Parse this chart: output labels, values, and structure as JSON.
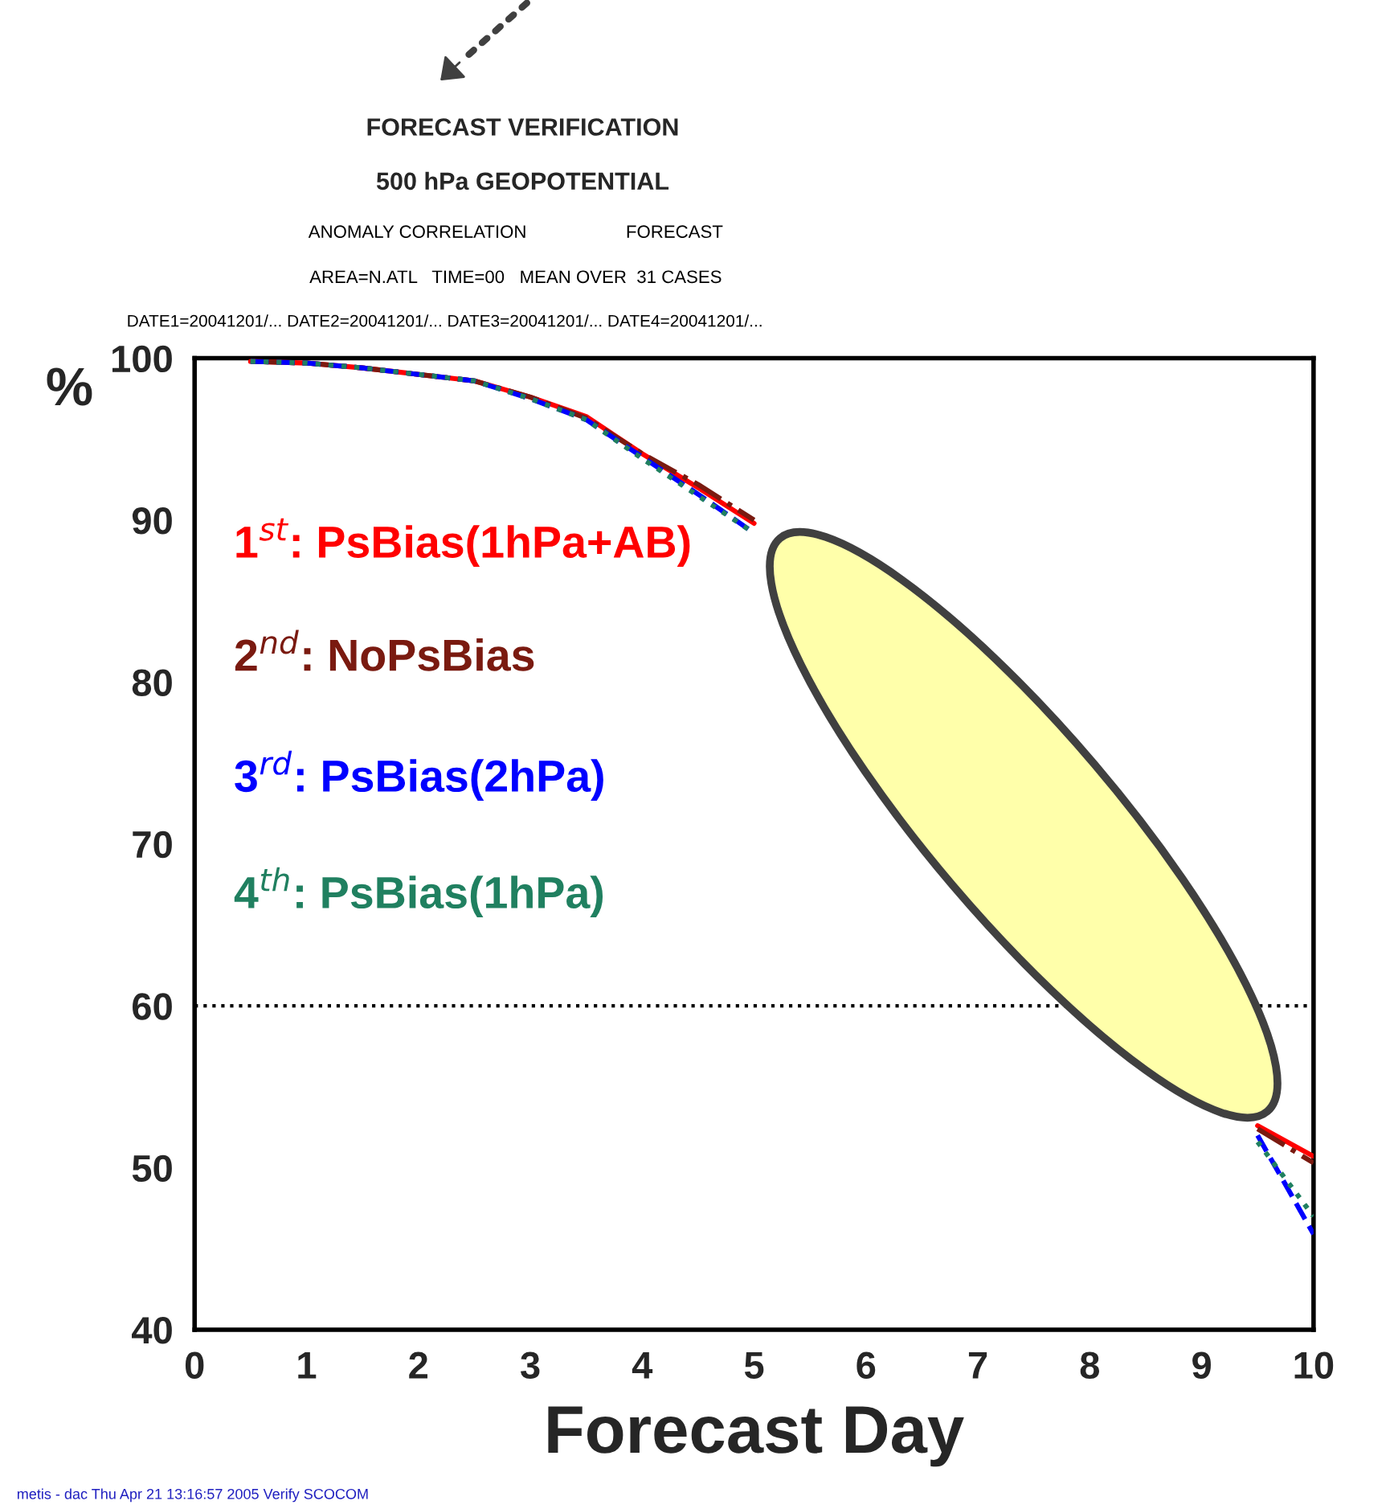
{
  "chart_data": {
    "type": "line",
    "title": "FORECAST VERIFICATION",
    "subtitle": "500 hPa GEOPOTENTIAL",
    "xlabel": "Forecast Day",
    "ylabel": "%",
    "annotations": [
      "ANOMALY CORRELATION                    FORECAST",
      "AREA=N.ATL   TIME=00   MEAN OVER  31 CASES",
      "DATE1=20041201/... DATE2=20041201/... DATE3=20041201/... DATE4=20041201/...",
      "metis - dac Thu Apr 21 13:16:57 2005 Verify SCOCOM"
    ],
    "x": [
      0.5,
      1,
      1.5,
      2,
      2.5,
      3,
      3.5,
      4,
      4.5,
      5,
      5.5,
      6,
      6.5,
      7,
      7.5,
      8,
      8.5,
      9,
      9.5,
      10
    ],
    "series": [
      {
        "name": "1$^{st}$: PsBias(1hPa+AB)",
        "color": "#ff0000",
        "line_style": "solid",
        "values": [
          99.8,
          99.7,
          99.4,
          99.0,
          98.6,
          97.6,
          96.4,
          94.1,
          92.0,
          89.8,
          null,
          null,
          null,
          null,
          null,
          null,
          null,
          null,
          52.6,
          50.7
        ]
      },
      {
        "name": "2$^{nd}$: NoPsBias",
        "color": "#7a1a10",
        "line_style": "dashdot",
        "values": [
          99.8,
          99.7,
          99.4,
          99.0,
          98.6,
          97.6,
          96.3,
          94.1,
          92.2,
          90.0,
          null,
          null,
          null,
          null,
          null,
          null,
          null,
          null,
          52.4,
          50.3
        ]
      },
      {
        "name": "3$^{rd}$: PsBias(2hPa)",
        "color": "#0000ff",
        "line_style": "dashed",
        "values": [
          99.8,
          99.7,
          99.4,
          99.0,
          98.6,
          97.5,
          96.2,
          93.9,
          91.6,
          89.2,
          null,
          null,
          null,
          null,
          null,
          null,
          null,
          null,
          52.0,
          45.9
        ]
      },
      {
        "name": "4$^{th}$: PsBias(1hPa)",
        "color": "#208060",
        "line_style": "dotted",
        "values": [
          99.8,
          99.7,
          99.4,
          99.0,
          98.6,
          97.5,
          96.2,
          93.8,
          91.5,
          89.2,
          null,
          null,
          null,
          null,
          null,
          null,
          null,
          null,
          51.6,
          47.0
        ]
      }
    ],
    "xlim": [
      0,
      10
    ],
    "ylim": [
      40,
      100
    ],
    "xticks": [
      0,
      1,
      2,
      3,
      4,
      5,
      6,
      7,
      8,
      9,
      10
    ],
    "yticks": [
      40,
      50,
      60,
      70,
      80,
      90,
      100
    ],
    "ref_lines": [
      {
        "axis": "y",
        "value": 60,
        "color": "#000000",
        "line_style": "dotted"
      }
    ],
    "grid": false,
    "legend": "left"
  }
}
